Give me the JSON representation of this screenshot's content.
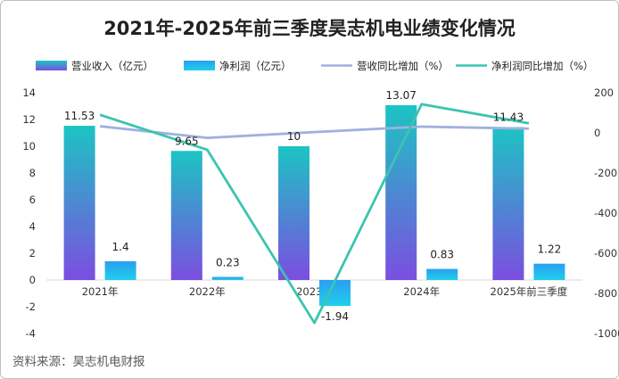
{
  "chart_data": {
    "type": "bar",
    "title": "2021年-2025年前三季度昊志机电业绩变化情况",
    "categories": [
      "2021年",
      "2022年",
      "2023年",
      "2024年",
      "2025年前三季度"
    ],
    "series": [
      {
        "name": "营业收入（亿元）",
        "type": "bar",
        "axis": "left",
        "values": [
          11.53,
          9.65,
          10,
          13.07,
          11.43
        ]
      },
      {
        "name": "净利润（亿元）",
        "type": "bar",
        "axis": "left",
        "values": [
          1.4,
          0.23,
          -1.94,
          0.83,
          1.22
        ]
      },
      {
        "name": "营收同比增加（%）",
        "type": "line",
        "axis": "right",
        "values": [
          33,
          -25,
          4,
          31,
          21
        ]
      },
      {
        "name": "净利润同比增加（%）",
        "type": "line",
        "axis": "right",
        "values": [
          90,
          -84,
          -947,
          143,
          48
        ]
      }
    ],
    "data_labels": {
      "revenue": [
        "11.53",
        "9.65",
        "10",
        "13.07",
        "11.43"
      ],
      "profit": [
        "1.4",
        "0.23",
        "-1.94",
        "0.83",
        "1.22"
      ]
    },
    "y_left": {
      "min": -4,
      "max": 14,
      "ticks": [
        "-4",
        "-2",
        "0",
        "2",
        "4",
        "6",
        "8",
        "10",
        "12",
        "14"
      ]
    },
    "y_right": {
      "min": -1000,
      "max": 200,
      "ticks": [
        "-1000",
        "-800",
        "-600",
        "-400",
        "-200",
        "0",
        "200"
      ]
    },
    "legend_position": "top",
    "grid": false,
    "colors": {
      "revenue_top": "#1cc4c4",
      "revenue_bottom": "#7b4ee0",
      "profit_top": "#2aa6f0",
      "profit_bottom": "#1fd0ec",
      "revenue_growth": "#9fb0e0",
      "profit_growth": "#3cc4b0"
    }
  },
  "source_text": "资料来源：昊志机电财报"
}
